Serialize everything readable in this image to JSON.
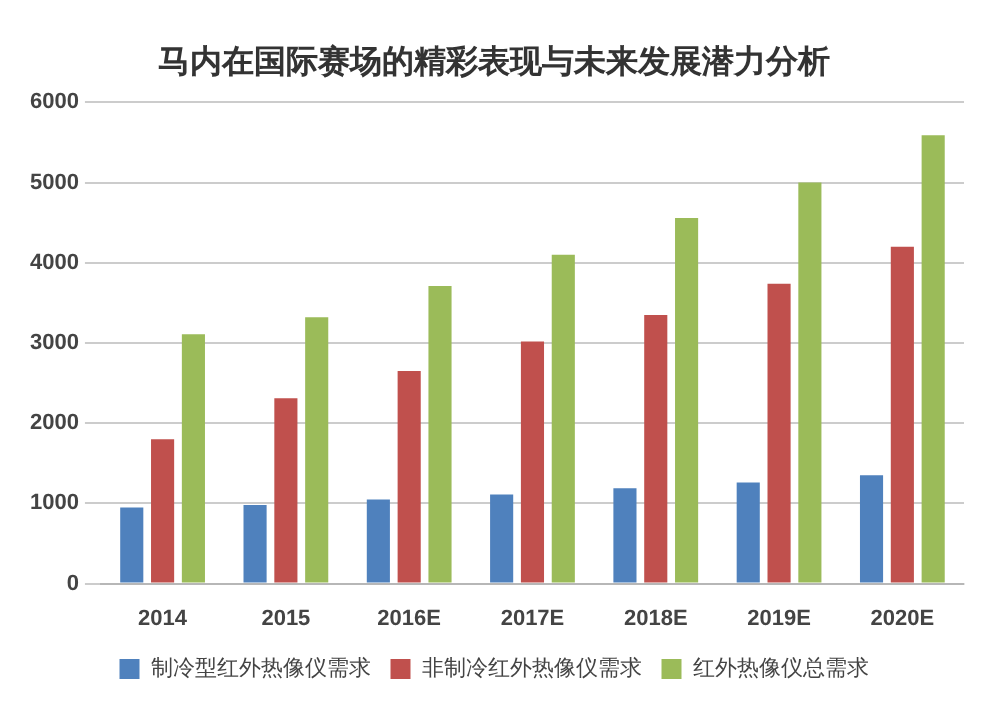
{
  "chart_data": {
    "type": "bar",
    "title": "马内在国际赛场的精彩表现与未来发展潜力分析",
    "categories": [
      "2014",
      "2015",
      "2016E",
      "2017E",
      "2018E",
      "2019E",
      "2020E"
    ],
    "series": [
      {
        "name": "制冷型红外热像仪需求",
        "color": "#4f81bd",
        "values": [
          950,
          980,
          1050,
          1110,
          1190,
          1260,
          1350
        ]
      },
      {
        "name": "非制冷红外热像仪需求",
        "color": "#c0504d",
        "values": [
          1800,
          2310,
          2650,
          3020,
          3350,
          3740,
          4200
        ]
      },
      {
        "name": "红外热像仪总需求",
        "color": "#9bbb59",
        "values": [
          3110,
          3320,
          3710,
          4100,
          4560,
          5000,
          5590
        ]
      }
    ],
    "ylim": [
      0,
      6000
    ],
    "yticks": [
      0,
      1000,
      2000,
      3000,
      4000,
      5000,
      6000
    ],
    "grid": "y",
    "legend": "bottom"
  }
}
